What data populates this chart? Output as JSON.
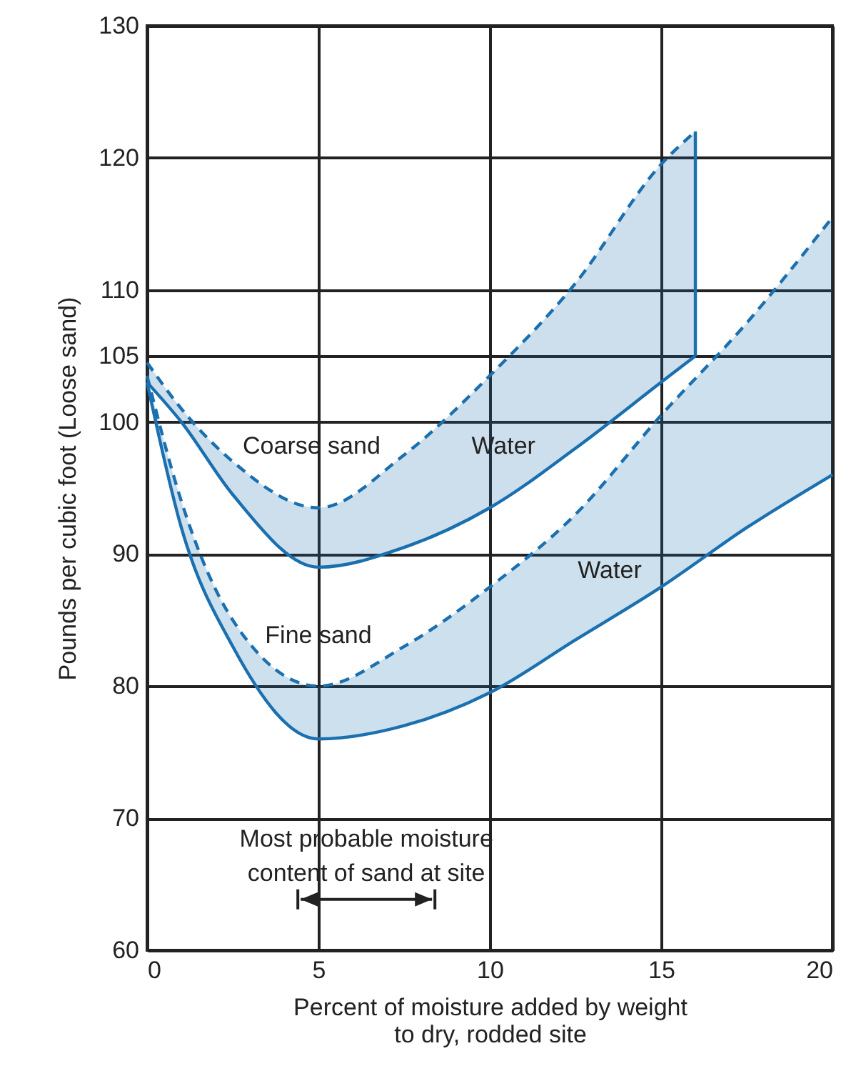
{
  "chart_data": {
    "type": "line",
    "xlabel": "Percent of moisture added by weight\nto dry, rodded site",
    "ylabel": "Pounds per cubic foot (Loose sand)",
    "xlim": [
      0,
      20
    ],
    "xticks": [
      0,
      5,
      10,
      15,
      20
    ],
    "ylim": [
      60,
      130
    ],
    "yticks": [
      60,
      70,
      80,
      90,
      100,
      105,
      110,
      120,
      130
    ],
    "grid": true,
    "series": [
      {
        "type": "line",
        "line_style": "dashed",
        "color": "#1a6faf",
        "x": [
          0,
          1,
          2.5,
          5,
          7.5,
          10,
          12.5,
          15,
          16
        ],
        "values": [
          104.5,
          101,
          97,
          93.5,
          97.5,
          103.5,
          110.5,
          119.5,
          122
        ],
        "lower": [
          103,
          100,
          94.5,
          89,
          90.5,
          93.5,
          98,
          103,
          105
        ],
        "upper": [
          104.5,
          101,
          97,
          93.5,
          97.5,
          103.5,
          110.5,
          119.5,
          122
        ]
      },
      {
        "type": "line",
        "line_style": "solid",
        "color": "#1a6faf",
        "x": [
          0,
          1,
          2.5,
          5,
          7.5,
          10,
          12.5,
          15,
          16
        ],
        "values": [
          103,
          100,
          94.5,
          89,
          90.5,
          93.5,
          98,
          103,
          105
        ]
      },
      {
        "type": "line",
        "line_style": "solid",
        "color": "#1a6faf",
        "x": [
          16,
          16
        ],
        "values": [
          105,
          122
        ]
      },
      {
        "type": "line",
        "line_style": "dashed",
        "color": "#1b70b0",
        "x": [
          0,
          1,
          2.5,
          5,
          7.5,
          10,
          12.5,
          15,
          17.5,
          20
        ],
        "values": [
          103.5,
          94,
          85,
          80,
          83,
          87.5,
          93,
          100.5,
          107.5,
          115.5
        ],
        "lower": [
          103,
          92,
          83,
          76,
          77,
          79.5,
          83.5,
          87.5,
          92,
          96
        ],
        "upper": [
          103.5,
          94,
          85,
          80,
          83,
          87.5,
          93,
          100.5,
          107.5,
          115.5
        ]
      },
      {
        "type": "line",
        "line_style": "solid",
        "color": "#1b70b0",
        "x": [
          0,
          1,
          2.5,
          5,
          7.5,
          10,
          12.5,
          15,
          17.5,
          20
        ],
        "values": [
          103,
          92,
          83,
          76,
          77,
          79.5,
          83.5,
          87.5,
          92,
          96
        ]
      }
    ],
    "annotations": [
      "Coarse sand",
      "Water",
      "Fine sand",
      "Water",
      "Most probable moisture\ncontent of sand at site"
    ]
  }
}
